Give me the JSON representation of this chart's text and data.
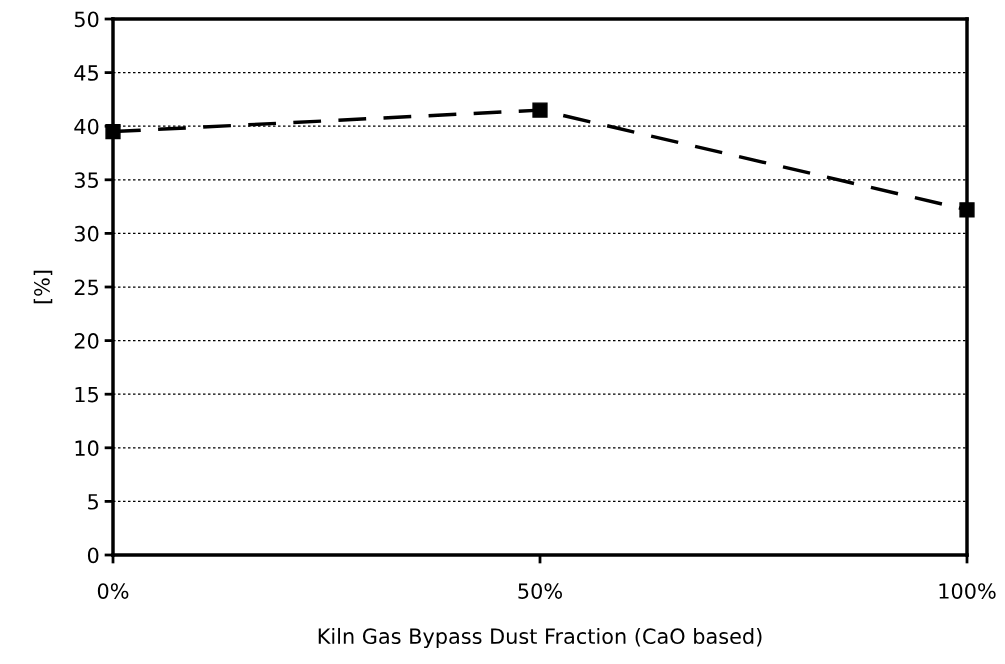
{
  "chart_data": {
    "type": "line",
    "xlabel": "Kiln Gas Bypass Dust Fraction (CaO based)",
    "ylabel": "[%]",
    "x": [
      0,
      50,
      100
    ],
    "series": [
      {
        "color": "#000000",
        "values": [
          39.5,
          41.5,
          32.2
        ]
      }
    ],
    "xlim": [
      0,
      100
    ],
    "xticks": [
      {
        "value": 0,
        "label": "0%"
      },
      {
        "value": 50,
        "label": "50%"
      },
      {
        "value": 100,
        "label": "100%"
      }
    ],
    "ylim": [
      0,
      50
    ],
    "yticks": [
      0,
      5,
      10,
      15,
      20,
      25,
      30,
      35,
      40,
      45,
      50
    ],
    "grid": "y",
    "marker": "square",
    "line_style": "dashed"
  }
}
